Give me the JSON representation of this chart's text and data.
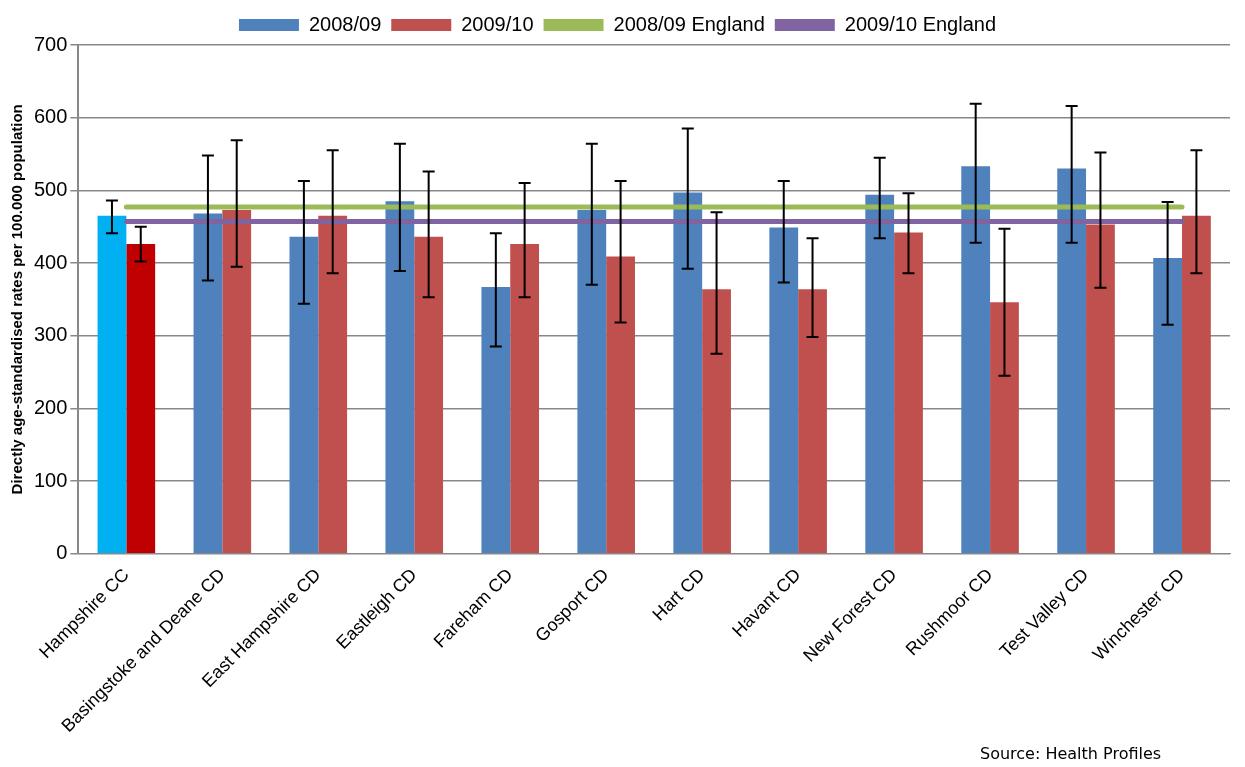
{
  "chart_data": {
    "type": "bar",
    "ylabel": "Directly age-standardised rates per 100.000 population",
    "categories": [
      "Hampshire CC",
      "Basingstoke and Deane CD",
      "East Hampshire CD",
      "Eastleigh CD",
      "Fareham CD",
      "Gosport CD",
      "Hart CD",
      "Havant CD",
      "New Forest CD",
      "Rushmoor CD",
      "Test Valley CD",
      "Winchester CD"
    ],
    "series": [
      {
        "name": "2008/09",
        "color": "#4f81bd",
        "colors": [
          "#00b0f0",
          "#4f81bd",
          "#4f81bd",
          "#4f81bd",
          "#4f81bd",
          "#4f81bd",
          "#4f81bd",
          "#4f81bd",
          "#4f81bd",
          "#4f81bd",
          "#4f81bd",
          "#4f81bd"
        ],
        "values": [
          465,
          468,
          436,
          485,
          367,
          473,
          497,
          449,
          494,
          533,
          530,
          407
        ],
        "errors": [
          [
            441,
            486
          ],
          [
            376,
            548
          ],
          [
            344,
            513
          ],
          [
            389,
            564
          ],
          [
            285,
            441
          ],
          [
            370,
            564
          ],
          [
            392,
            585
          ],
          [
            373,
            513
          ],
          [
            434,
            545
          ],
          [
            428,
            619
          ],
          [
            428,
            616
          ],
          [
            315,
            484
          ]
        ]
      },
      {
        "name": "2009/10",
        "color": "#c0504d",
        "colors": [
          "#c00000",
          "#c0504d",
          "#c0504d",
          "#c0504d",
          "#c0504d",
          "#c0504d",
          "#c0504d",
          "#c0504d",
          "#c0504d",
          "#c0504d",
          "#c0504d",
          "#c0504d"
        ],
        "values": [
          426,
          473,
          465,
          436,
          426,
          409,
          364,
          364,
          442,
          346,
          453,
          465
        ],
        "errors": [
          [
            402,
            450
          ],
          [
            395,
            569
          ],
          [
            386,
            555
          ],
          [
            353,
            526
          ],
          [
            353,
            510
          ],
          [
            318,
            513
          ],
          [
            275,
            470
          ],
          [
            298,
            434
          ],
          [
            386,
            496
          ],
          [
            245,
            447
          ],
          [
            366,
            552
          ],
          [
            386,
            555
          ]
        ]
      },
      {
        "name": "2008/09 England",
        "type": "line",
        "color": "#9bbb59",
        "values": [
          477,
          477,
          477,
          477,
          477,
          477,
          477,
          477,
          477,
          477,
          477,
          477
        ]
      },
      {
        "name": "2009/10 England",
        "type": "line",
        "color": "#8064a2",
        "values": [
          457,
          457,
          457,
          457,
          457,
          457,
          457,
          457,
          457,
          457,
          457,
          457
        ]
      }
    ],
    "ylim": [
      0,
      700
    ],
    "yticks": [
      0,
      100,
      200,
      300,
      400,
      500,
      600,
      700
    ],
    "grid": "y",
    "legend": "top",
    "marker": "none",
    "annotations": [
      "Source: Health Profiles"
    ]
  }
}
